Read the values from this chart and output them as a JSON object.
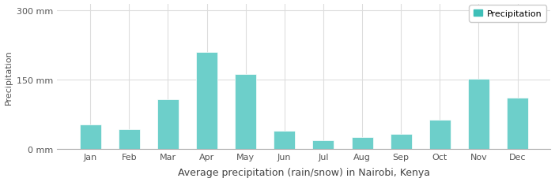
{
  "months": [
    "Jan",
    "Feb",
    "Mar",
    "Apr",
    "May",
    "Jun",
    "Jul",
    "Aug",
    "Sep",
    "Oct",
    "Nov",
    "Dec"
  ],
  "values": [
    53,
    43,
    108,
    210,
    163,
    40,
    20,
    26,
    32,
    63,
    152,
    112
  ],
  "bar_color": "#6dcfca",
  "bar_edge_color": "#ffffff",
  "background_color": "#ffffff",
  "plot_bg_color": "#ffffff",
  "grid_color": "#dddddd",
  "title": "Average precipitation (rain/snow) in Nairobi, Kenya",
  "ylabel": "Precipitation",
  "yticks": [
    0,
    150,
    300
  ],
  "ytick_labels": [
    "0 mm",
    "150 mm",
    "300 mm"
  ],
  "ylim": [
    0,
    315
  ],
  "legend_label": "Precipitation",
  "legend_color": "#3ebfb8",
  "title_fontsize": 9,
  "axis_fontsize": 8,
  "tick_fontsize": 8,
  "bar_width": 0.55
}
